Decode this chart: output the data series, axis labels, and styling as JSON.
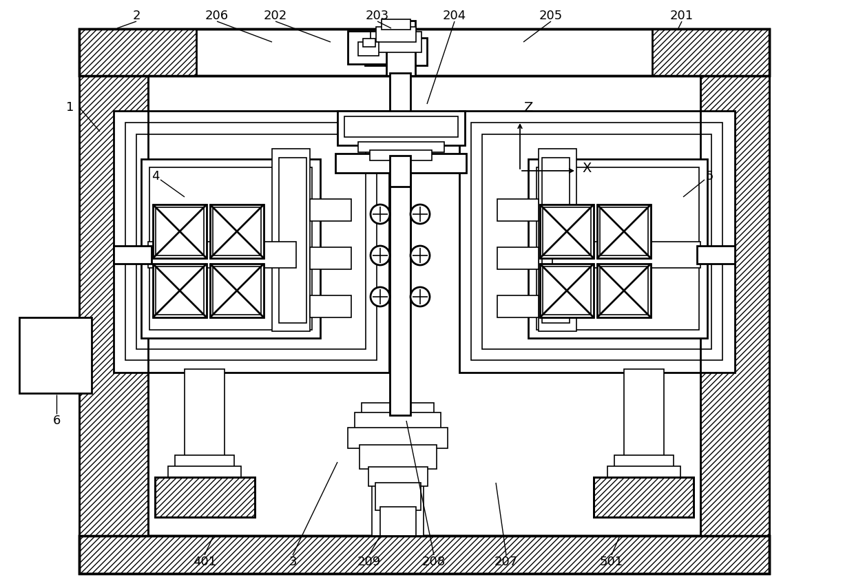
{
  "fig_width": 12.4,
  "fig_height": 8.51,
  "dpi": 100,
  "bg_color": "#ffffff"
}
